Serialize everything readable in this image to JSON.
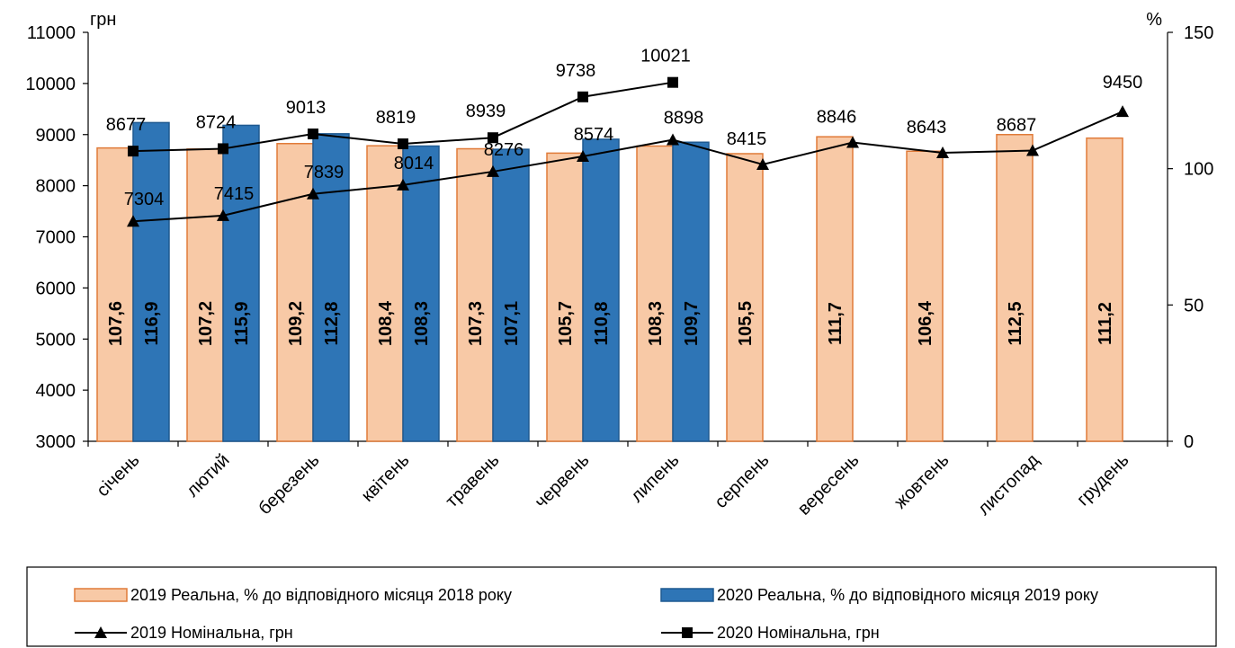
{
  "chart_data": {
    "type": "bar",
    "categories": [
      "січень",
      "лютий",
      "березень",
      "квітень",
      "травень",
      "червень",
      "липень",
      "серпень",
      "вересень",
      "жовтень",
      "листопад",
      "грудень"
    ],
    "y_left": {
      "unit": "грн",
      "ticks": [
        "3000",
        "4000",
        "5000",
        "6000",
        "7000",
        "8000",
        "9000",
        "10000",
        "11000"
      ],
      "ylim": [
        3000,
        11000
      ]
    },
    "y_right": {
      "unit": "%",
      "ticks": [
        "0",
        "50",
        "100",
        "150"
      ],
      "ylim": [
        0,
        150
      ]
    },
    "bar_series": [
      {
        "name": "2019 Реальна, % до відповідного місяця 2018 року",
        "color": "#F8C9A6",
        "stroke": "#E07B39",
        "values": [
          107.6,
          107.2,
          109.2,
          108.4,
          107.3,
          105.7,
          108.3,
          105.5,
          111.7,
          106.4,
          112.5,
          111.2
        ],
        "labels": [
          "107,6",
          "107,2",
          "109,2",
          "108,4",
          "107,3",
          "105,7",
          "108,3",
          "105,5",
          "111,7",
          "106,4",
          "112,5",
          "111,2"
        ]
      },
      {
        "name": "2020 Реальна, % до відповідного місяця 2019 року",
        "color": "#2E75B6",
        "stroke": "#1F5A91",
        "values": [
          116.9,
          115.9,
          112.8,
          108.3,
          107.1,
          110.8,
          109.7
        ],
        "labels": [
          "116,9",
          "115,9",
          "112,8",
          "108,3",
          "107,1",
          "110,8",
          "109,7"
        ]
      }
    ],
    "line_series": [
      {
        "name": "2019 Номінальна, грн",
        "marker": "triangle",
        "values": [
          7304,
          7415,
          7839,
          8014,
          8276,
          8574,
          8898,
          8415,
          8846,
          8643,
          8687,
          9450
        ],
        "labels": [
          "7304",
          "7415",
          "7839",
          "8014",
          "8276",
          "8574",
          "8898",
          "8415",
          "8846",
          "8643",
          "8687",
          "9450"
        ]
      },
      {
        "name": "2020 Номінальна, грн",
        "marker": "square",
        "values": [
          8677,
          8724,
          9013,
          8819,
          8939,
          9738,
          10021
        ],
        "labels": [
          "8677",
          "8724",
          "9013",
          "8819",
          "8939",
          "9738",
          "10021"
        ]
      }
    ]
  }
}
